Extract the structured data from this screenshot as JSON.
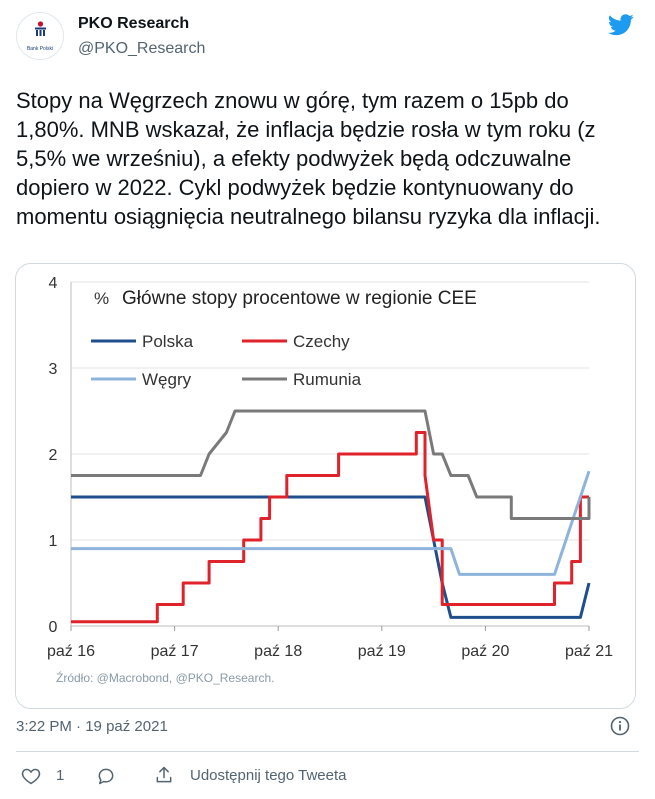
{
  "header": {
    "name": "PKO Research",
    "handle": "@PKO_Research",
    "avatar_caption": "Bank Polski"
  },
  "tweet": {
    "text": "Stopy na Węgrzech znowu w górę, tym razem o 15pb do 1,80%. MNB wskazał, że inflacja będzie rosła w tym roku (z 5,5% we wrześniu), a efekty podwyżek będą odczuwalne dopiero w 2022. Cykl podwyżek będzie kontynuowany do momentu osiągnięcia neutralnego bilansu ryzyka dla inflacji."
  },
  "meta": {
    "time": "3:22 PM",
    "separator": "·",
    "date": "19 paź 2021"
  },
  "actions": {
    "like_count": "1",
    "share_label": "Udostępnij tego Tweeta"
  },
  "colors": {
    "twitter_blue": "#1d9bf0",
    "polska": "#1f4e8c",
    "czechy": "#e0222a",
    "wegry": "#8fb4dc",
    "rumunia": "#7a7a7a"
  },
  "chart_data": {
    "type": "line",
    "title": "Główne stopy procentowe w regionie CEE",
    "ylabel": "%",
    "source": "Źródło: @Macrobond, @PKO_Research.",
    "ylim": [
      0,
      4
    ],
    "yticks": [
      "0",
      "1",
      "2",
      "3",
      "4"
    ],
    "xlim": [
      "2016-10",
      "2021-10"
    ],
    "xticks": [
      {
        "x": "2016-10",
        "label": "paź 16"
      },
      {
        "x": "2017-10",
        "label": "paź 17"
      },
      {
        "x": "2018-10",
        "label": "paź 18"
      },
      {
        "x": "2019-10",
        "label": "paź 19"
      },
      {
        "x": "2020-10",
        "label": "paź 20"
      },
      {
        "x": "2021-10",
        "label": "paź 21"
      }
    ],
    "legend_placement": "top-left",
    "series": [
      {
        "name": "Polska",
        "color": "#1f4e8c",
        "points": [
          [
            "2016-10",
            1.5
          ],
          [
            "2020-03",
            1.5
          ],
          [
            "2020-04",
            1.0
          ],
          [
            "2020-05",
            0.5
          ],
          [
            "2020-06",
            0.1
          ],
          [
            "2021-09",
            0.1
          ],
          [
            "2021-10",
            0.5
          ]
        ]
      },
      {
        "name": "Czechy",
        "color": "#e0222a",
        "points": [
          [
            "2016-10",
            0.05
          ],
          [
            "2017-08",
            0.05
          ],
          [
            "2017-08",
            0.25
          ],
          [
            "2017-11",
            0.25
          ],
          [
            "2017-11",
            0.5
          ],
          [
            "2018-02",
            0.5
          ],
          [
            "2018-02",
            0.75
          ],
          [
            "2018-06",
            0.75
          ],
          [
            "2018-06",
            1.0
          ],
          [
            "2018-08",
            1.0
          ],
          [
            "2018-08",
            1.25
          ],
          [
            "2018-09",
            1.25
          ],
          [
            "2018-09",
            1.5
          ],
          [
            "2018-11",
            1.5
          ],
          [
            "2018-11",
            1.75
          ],
          [
            "2019-05",
            1.75
          ],
          [
            "2019-05",
            2.0
          ],
          [
            "2020-02",
            2.0
          ],
          [
            "2020-02",
            2.25
          ],
          [
            "2020-03",
            2.25
          ],
          [
            "2020-03",
            1.75
          ],
          [
            "2020-04",
            1.0
          ],
          [
            "2020-05",
            1.0
          ],
          [
            "2020-05",
            0.25
          ],
          [
            "2021-06",
            0.25
          ],
          [
            "2021-06",
            0.5
          ],
          [
            "2021-08",
            0.5
          ],
          [
            "2021-08",
            0.75
          ],
          [
            "2021-09",
            0.75
          ],
          [
            "2021-09",
            1.5
          ],
          [
            "2021-10",
            1.5
          ]
        ]
      },
      {
        "name": "Węgry",
        "color": "#8fb4dc",
        "points": [
          [
            "2016-10",
            0.9
          ],
          [
            "2020-06",
            0.9
          ],
          [
            "2020-07",
            0.6
          ],
          [
            "2021-06",
            0.6
          ],
          [
            "2021-07",
            0.9
          ],
          [
            "2021-08",
            1.2
          ],
          [
            "2021-09",
            1.5
          ],
          [
            "2021-10",
            1.8
          ]
        ]
      },
      {
        "name": "Rumunia",
        "color": "#7a7a7a",
        "points": [
          [
            "2016-10",
            1.75
          ],
          [
            "2018-01",
            1.75
          ],
          [
            "2018-02",
            2.0
          ],
          [
            "2018-04",
            2.25
          ],
          [
            "2018-05",
            2.5
          ],
          [
            "2020-03",
            2.5
          ],
          [
            "2020-04",
            2.0
          ],
          [
            "2020-05",
            2.0
          ],
          [
            "2020-06",
            1.75
          ],
          [
            "2020-08",
            1.75
          ],
          [
            "2020-09",
            1.5
          ],
          [
            "2021-01",
            1.5
          ],
          [
            "2021-01",
            1.25
          ],
          [
            "2021-10",
            1.25
          ],
          [
            "2021-10",
            1.5
          ]
        ]
      }
    ]
  }
}
